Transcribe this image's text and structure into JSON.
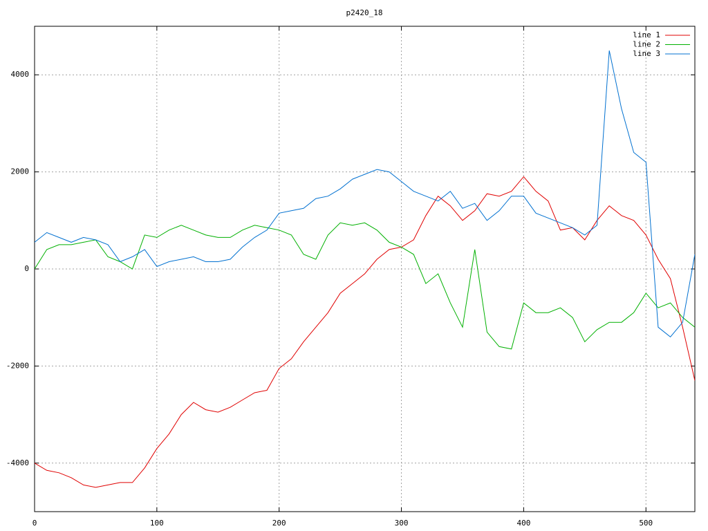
{
  "chart_data": {
    "type": "line",
    "title": "p2420_18",
    "x": [
      0,
      10,
      20,
      30,
      40,
      50,
      60,
      70,
      80,
      90,
      100,
      110,
      120,
      130,
      140,
      150,
      160,
      170,
      180,
      190,
      200,
      210,
      220,
      230,
      240,
      250,
      260,
      270,
      280,
      290,
      300,
      310,
      320,
      330,
      340,
      350,
      360,
      370,
      380,
      390,
      400,
      410,
      420,
      430,
      440,
      450,
      460,
      470,
      480,
      490,
      500,
      510,
      520,
      530,
      540
    ],
    "series": [
      {
        "name": "line 1",
        "color": "#e00000",
        "values": [
          -4000,
          -4150,
          -4200,
          -4300,
          -4450,
          -4500,
          -4450,
          -4400,
          -4400,
          -4100,
          -3700,
          -3400,
          -3000,
          -2750,
          -2900,
          -2950,
          -2850,
          -2700,
          -2550,
          -2500,
          -2050,
          -1850,
          -1500,
          -1200,
          -900,
          -500,
          -300,
          -100,
          200,
          400,
          450,
          600,
          1100,
          1500,
          1300,
          1000,
          1200,
          1550,
          1500,
          1600,
          1900,
          1600,
          1400,
          800,
          850,
          600,
          1000,
          1300,
          1100,
          1000,
          700,
          200,
          -200,
          -1200,
          -2300
        ]
      },
      {
        "name": "line 2",
        "color": "#00b000",
        "values": [
          0,
          400,
          500,
          500,
          550,
          600,
          250,
          150,
          0,
          700,
          650,
          800,
          900,
          800,
          700,
          650,
          650,
          800,
          900,
          850,
          800,
          700,
          300,
          200,
          700,
          950,
          900,
          950,
          800,
          550,
          450,
          300,
          -300,
          -100,
          -700,
          -1200,
          400,
          -1300,
          -1600,
          -1650,
          -700,
          -900,
          -900,
          -800,
          -1000,
          -1500,
          -1250,
          -1100,
          -1100,
          -900,
          -500,
          -800,
          -700,
          -1000,
          -1200
        ]
      },
      {
        "name": "line 3",
        "color": "#0070d0",
        "values": [
          550,
          750,
          650,
          550,
          650,
          600,
          500,
          150,
          250,
          400,
          50,
          150,
          200,
          250,
          150,
          150,
          200,
          450,
          650,
          800,
          1150,
          1200,
          1250,
          1450,
          1500,
          1650,
          1850,
          1950,
          2050,
          2000,
          1800,
          1600,
          1500,
          1400,
          1600,
          1250,
          1350,
          1000,
          1200,
          1500,
          1500,
          1150,
          1050,
          950,
          850,
          700,
          900,
          4500,
          3300,
          2400,
          2200,
          -1200,
          -1400,
          -1100,
          300
        ]
      }
    ],
    "xlim": [
      0,
      540
    ],
    "ylim": [
      -5000,
      5000
    ],
    "xticks": [
      0,
      100,
      200,
      300,
      400,
      500
    ],
    "yticks": [
      -4000,
      -2000,
      0,
      2000,
      4000
    ],
    "grid": true,
    "legend": "top-right"
  }
}
